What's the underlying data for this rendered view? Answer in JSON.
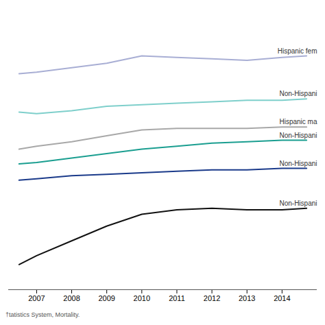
{
  "chart_data": {
    "type": "line",
    "x": [
      2006.5,
      2007,
      2008,
      2009,
      2010,
      2011,
      2012,
      2013,
      2014,
      2014.7
    ],
    "series": [
      {
        "name": "Hispanic fem",
        "color": "#a8aed4",
        "values": [
          83.1,
          83.2,
          83.5,
          83.8,
          84.3,
          84.2,
          84.1,
          84.0,
          84.2,
          84.3
        ]
      },
      {
        "name": "Non-Hispani",
        "color": "#7ecfcb",
        "values": [
          80.5,
          80.4,
          80.6,
          80.9,
          81.0,
          81.1,
          81.2,
          81.3,
          81.3,
          81.4
        ]
      },
      {
        "name": "Hispanic ma",
        "color": "#a8a8a8",
        "values": [
          78.0,
          78.2,
          78.5,
          78.9,
          79.3,
          79.4,
          79.4,
          79.4,
          79.5,
          79.5
        ]
      },
      {
        "name": "Non-Hispani",
        "color": "#1a9e90",
        "values": [
          77.0,
          77.1,
          77.4,
          77.7,
          78.0,
          78.2,
          78.4,
          78.5,
          78.6,
          78.6
        ]
      },
      {
        "name": "Non-Hispani",
        "color": "#1a3a8a",
        "values": [
          75.9,
          76.0,
          76.2,
          76.3,
          76.4,
          76.5,
          76.6,
          76.6,
          76.7,
          76.7
        ]
      },
      {
        "name": "Non-Hispani",
        "color": "#111111",
        "values": [
          70.2,
          70.8,
          71.8,
          72.8,
          73.6,
          73.9,
          74.0,
          73.9,
          73.9,
          74.0
        ]
      }
    ],
    "xlim": [
      2006.2,
      2015.0
    ],
    "xticks": [
      2007,
      2008,
      2009,
      2010,
      2011,
      2012,
      2013,
      2014
    ],
    "ylim": [
      68.5,
      87.5
    ],
    "tick_labels": "x",
    "grid": false,
    "footnote": "†tatistics System, Mortality."
  }
}
